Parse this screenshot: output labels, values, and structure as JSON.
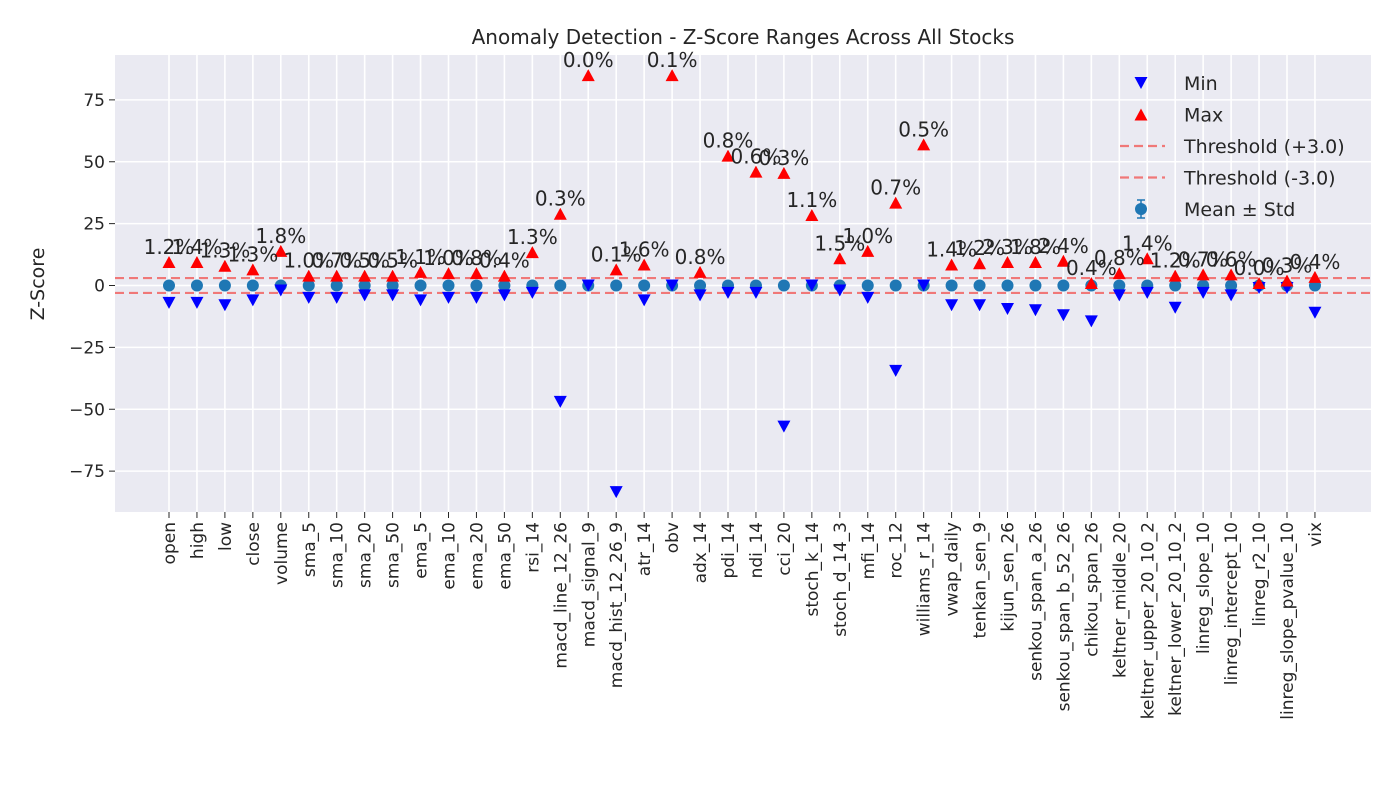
{
  "chart_data": {
    "type": "scatter",
    "title": "Anomaly Detection - Z-Score Ranges Across All Stocks",
    "xlabel": "",
    "ylabel": "Z-Score",
    "ylim": [
      -92,
      93
    ],
    "yticks": [
      -75,
      -50,
      -25,
      0,
      25,
      50,
      75
    ],
    "ytick_labels": [
      "−75",
      "−50",
      "−25",
      "0",
      "25",
      "50",
      "75"
    ],
    "grid": true,
    "legend_position": "top-right",
    "colors": {
      "background": "#eaeaf2",
      "grid": "#ffffff",
      "min_marker": "#0000ff",
      "max_marker": "#ff0000",
      "mean_marker": "#1f77b4",
      "threshold": "#f07878"
    },
    "thresholds": [
      3.0,
      -3.0
    ],
    "legend": [
      {
        "label": "Min",
        "kind": "min"
      },
      {
        "label": "Max",
        "kind": "max"
      },
      {
        "label": "Threshold (+3.0)",
        "kind": "threshold"
      },
      {
        "label": "Threshold (-3.0)",
        "kind": "threshold"
      },
      {
        "label": "Mean ± Std",
        "kind": "mean"
      }
    ],
    "categories": [
      "open",
      "high",
      "low",
      "close",
      "volume",
      "sma_5",
      "sma_10",
      "sma_20",
      "sma_50",
      "ema_5",
      "ema_10",
      "ema_20",
      "ema_50",
      "rsi_14",
      "macd_line_12_26",
      "macd_signal_9",
      "macd_hist_12_26_9",
      "atr_14",
      "obv",
      "adx_14",
      "pdi_14",
      "ndi_14",
      "cci_20",
      "stoch_k_14",
      "stoch_d_14_3",
      "mfi_14",
      "roc_12",
      "williams_r_14",
      "vwap_daily",
      "tenkan_sen_9",
      "kijun_sen_26",
      "senkou_span_a_26",
      "senkou_span_b_52_26",
      "chikou_span_26",
      "keltner_middle_20",
      "keltner_upper_20_10_2",
      "keltner_lower_20_10_2",
      "linreg_slope_10",
      "linreg_intercept_10",
      "linreg_r2_10",
      "linreg_slope_pvalue_10",
      "vix"
    ],
    "series": [
      {
        "name": "Min",
        "values": [
          -7,
          -7,
          -8,
          -6,
          -2,
          -5,
          -5,
          -4,
          -4,
          -6,
          -5,
          -5,
          -4,
          -3,
          -47,
          0,
          -83.5,
          -6,
          0,
          -4,
          -3,
          -3,
          -57,
          0,
          -2,
          -5,
          -34.5,
          0,
          -8,
          -8,
          -9.5,
          -10,
          -12,
          -14.5,
          -4,
          -3,
          -9,
          -3,
          -4,
          -1,
          -1,
          -11
        ]
      },
      {
        "name": "Max",
        "values": [
          9.5,
          9.5,
          8,
          6.5,
          14,
          4,
          4,
          4,
          4,
          5.5,
          5,
          5,
          4,
          13.5,
          29,
          85,
          6.5,
          8.5,
          85,
          5.5,
          52.5,
          46,
          45.5,
          28.5,
          11,
          14,
          33.5,
          57,
          8.5,
          9,
          9.5,
          9.5,
          10,
          1,
          5,
          11,
          4,
          4.5,
          4.5,
          1,
          2,
          3.5
        ]
      },
      {
        "name": "Mean ± Std",
        "values": [
          0,
          0,
          0,
          0,
          0,
          0,
          0,
          0,
          0,
          0,
          0,
          0,
          0,
          0,
          0,
          0,
          0,
          0,
          0,
          0,
          0,
          0,
          0,
          0,
          0,
          0,
          0,
          0,
          0,
          0,
          0,
          0,
          0,
          0,
          0,
          0,
          0,
          0,
          0,
          0,
          0,
          0
        ],
        "std": [
          1,
          1,
          1,
          1,
          1,
          1,
          1,
          1,
          1,
          1,
          1,
          1,
          1,
          1,
          1,
          1,
          1,
          1,
          1,
          1,
          1,
          1,
          1,
          1,
          1,
          1,
          1,
          1,
          1,
          1,
          1,
          1,
          1,
          1,
          1,
          1,
          1,
          1,
          1,
          1,
          1,
          1
        ]
      }
    ],
    "annotations": [
      "1.2%",
      "1.4%",
      "1.3%",
      "1.3%",
      "1.8%",
      "1.0%",
      "0.7%",
      "0.5%",
      "0.5%",
      "1.1%",
      "1.0%",
      "0.8%",
      "0.4%",
      "1.3%",
      "0.3%",
      "0.0%",
      "0.1%",
      "1.6%",
      "0.1%",
      "0.8%",
      "0.8%",
      "0.6%",
      "0.3%",
      "1.1%",
      "1.5%",
      "1.0%",
      "0.7%",
      "0.5%",
      "1.4%",
      "1.2%",
      "2.3%",
      "1.8%",
      "2.4%",
      "0.4%",
      "0.8%",
      "1.4%",
      "1.2%",
      "0.7%",
      "0.6%",
      "0.0%",
      "0.3%",
      "0.4%"
    ]
  }
}
